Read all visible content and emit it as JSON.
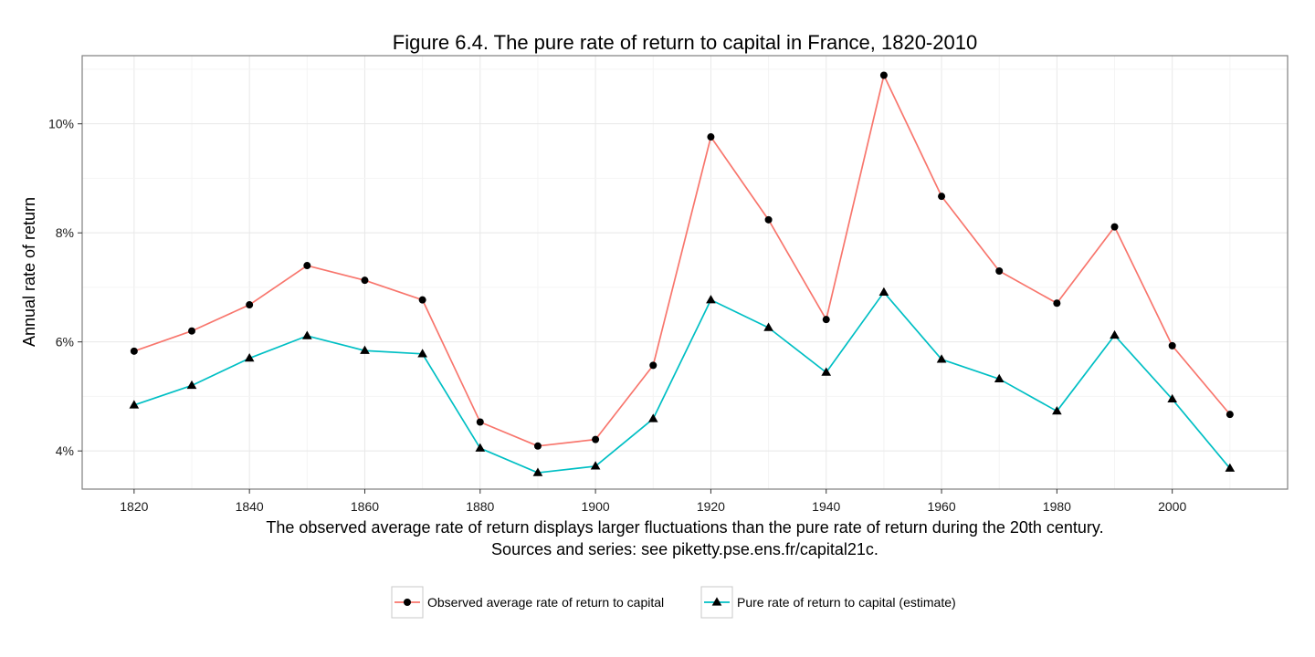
{
  "chart_data": {
    "type": "line",
    "title": "Figure 6.4. The pure rate of return to capital in France, 1820-2010",
    "ylabel": "Annual rate of return",
    "xlabel": "",
    "caption_lines": [
      "The observed average rate of return displays larger fluctuations than the pure rate of return during the 20th century.",
      "Sources and series: see piketty.pse.ens.fr/capital21c."
    ],
    "x": [
      1820,
      1830,
      1840,
      1850,
      1860,
      1870,
      1880,
      1890,
      1900,
      1910,
      1920,
      1930,
      1940,
      1950,
      1960,
      1970,
      1980,
      1990,
      2000,
      2010
    ],
    "x_ticks": [
      1820,
      1840,
      1860,
      1880,
      1900,
      1920,
      1940,
      1960,
      1980,
      2000
    ],
    "x_tick_labels": [
      "1820",
      "1840",
      "1860",
      "1880",
      "1900",
      "1920",
      "1940",
      "1960",
      "1980",
      "2000"
    ],
    "y_ticks": [
      4,
      6,
      8,
      10
    ],
    "y_tick_labels": [
      "4%",
      "6%",
      "8%",
      "10%"
    ],
    "xlim": [
      1811,
      2020
    ],
    "ylim": [
      3.3,
      11.25
    ],
    "grid": true,
    "legend_position": "bottom",
    "series": [
      {
        "name": "Observed average rate of return to capital",
        "color": "#F8766D",
        "marker": "circle",
        "values": [
          5.83,
          6.2,
          6.68,
          7.4,
          7.13,
          6.77,
          4.53,
          4.09,
          4.21,
          5.57,
          9.76,
          8.24,
          6.41,
          10.89,
          8.67,
          7.3,
          6.71,
          8.11,
          5.93,
          4.67
        ]
      },
      {
        "name": "Pure rate of return to capital (estimate)",
        "color": "#00BFC4",
        "marker": "triangle",
        "values": [
          4.84,
          5.2,
          5.7,
          6.11,
          5.84,
          5.78,
          4.05,
          3.6,
          3.72,
          4.59,
          6.77,
          6.26,
          5.44,
          6.91,
          5.68,
          5.32,
          4.73,
          6.12,
          4.95,
          3.68
        ]
      }
    ]
  }
}
